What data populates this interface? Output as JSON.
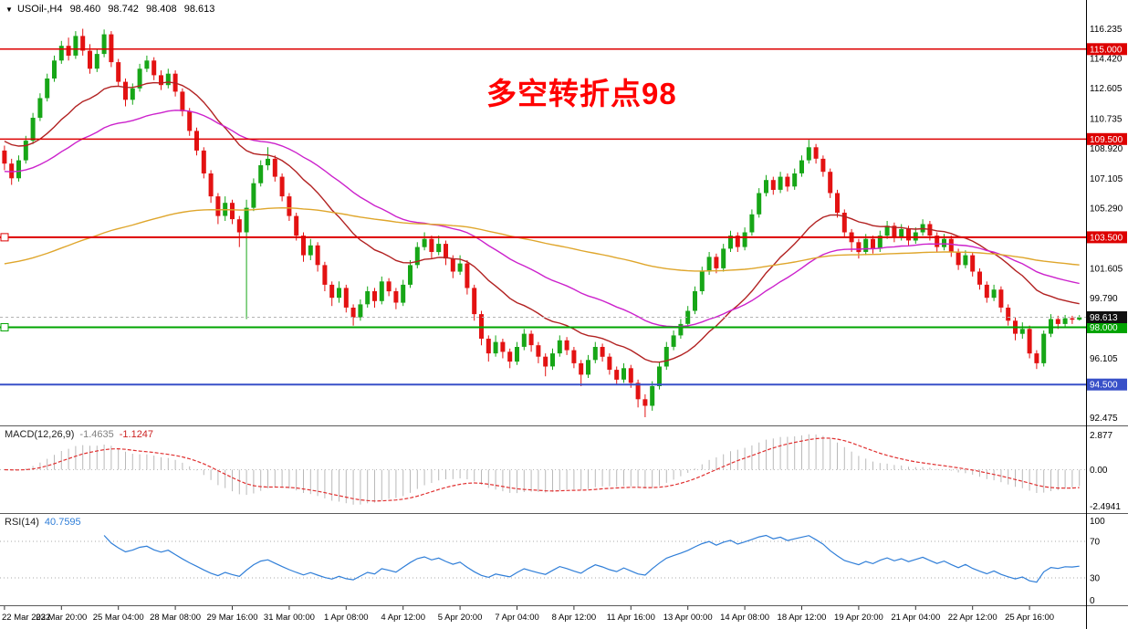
{
  "quote_bar": {
    "symbol": "USOil-,H4",
    "open": "98.460",
    "high": "98.742",
    "low": "98.408",
    "close": "98.613"
  },
  "icons": {
    "symbol_dropdown": "▼"
  },
  "annotation": {
    "text": "多空转折点98",
    "color": "#ff0000"
  },
  "colors": {
    "bull": "#17a617",
    "bear": "#e31212",
    "macd_histogram": "#b9b9b9",
    "macd_signal": "#e03030",
    "rsi_line": "#2f7ed8",
    "current_tag_bg": "#111111"
  },
  "current_price": {
    "value": 98.613,
    "label": "98.613"
  },
  "levels": [
    {
      "value": 115.0,
      "label": "115.000",
      "color": "#dd0000",
      "width": 1.5,
      "anchor": false
    },
    {
      "value": 109.5,
      "label": "109.500",
      "color": "#dd0000",
      "width": 1.5,
      "anchor": false
    },
    {
      "value": 103.5,
      "label": "103.500",
      "color": "#dd0000",
      "width": 2,
      "anchor": true
    },
    {
      "value": 98.0,
      "label": "98.000",
      "color": "#00a400",
      "width": 2,
      "anchor": true
    },
    {
      "value": 94.5,
      "label": "94.500",
      "color": "#3850c8",
      "width": 2,
      "anchor": false
    }
  ],
  "price_axis": {
    "min": 92.0,
    "max": 118.0,
    "tick_labels": [
      "116.235",
      "114.420",
      "112.605",
      "110.735",
      "108.920",
      "107.105",
      "105.290",
      "101.605",
      "99.790",
      "96.105",
      "92.475"
    ]
  },
  "time_axis": [
    "22 Mar 2022",
    "23 Mar 20:00",
    "25 Mar 04:00",
    "28 Mar 08:00",
    "29 Mar 16:00",
    "31 Mar 00:00",
    "1 Apr 08:00",
    "4 Apr 12:00",
    "5 Apr 20:00",
    "7 Apr 04:00",
    "8 Apr 12:00",
    "11 Apr 16:00",
    "13 Apr 00:00",
    "14 Apr 08:00",
    "18 Apr 12:00",
    "19 Apr 20:00",
    "21 Apr 04:00",
    "22 Apr 12:00",
    "25 Apr 16:00"
  ],
  "chart_data": {
    "type": "candlestick",
    "symbol": "USOil-",
    "timeframe": "H4",
    "title_annotation": "多空转折点98",
    "ylim": [
      92.0,
      118.0
    ],
    "moving_averages": [
      {
        "name": "ma-fast-crimson",
        "period": 21,
        "seed": 109.5,
        "color": "#b22222"
      },
      {
        "name": "ma-mid-magenta",
        "period": 45,
        "seed": 107.5,
        "color": "#cc22cc"
      },
      {
        "name": "ma-slow-orange",
        "period": 150,
        "seed": 101.8,
        "color": "#dfa62c"
      }
    ],
    "indicators": {
      "macd": {
        "name": "MACD(12,26,9)",
        "value_main": "-1.4635",
        "value_signal": "-1.1247",
        "fast": 12,
        "slow": 26,
        "signal": 9,
        "axis_labels": [
          "2.877",
          "0.00",
          "-2.4941"
        ]
      },
      "rsi": {
        "name": "RSI(14)",
        "value": "40.7595",
        "period": 14,
        "levels": [
          70,
          30
        ],
        "axis_labels": [
          "100",
          "70",
          "30",
          "0"
        ]
      }
    },
    "candles": [
      [
        108.8,
        109.1,
        107.6,
        108.0
      ],
      [
        108.0,
        108.3,
        106.7,
        107.1
      ],
      [
        107.1,
        108.5,
        106.9,
        108.2
      ],
      [
        108.2,
        109.7,
        108.0,
        109.4
      ],
      [
        109.4,
        111.1,
        109.2,
        110.8
      ],
      [
        110.8,
        112.3,
        110.6,
        112.0
      ],
      [
        112.0,
        113.5,
        111.8,
        113.2
      ],
      [
        113.2,
        114.6,
        113.0,
        114.3
      ],
      [
        114.3,
        115.5,
        114.1,
        115.2
      ],
      [
        115.2,
        115.7,
        114.3,
        114.6
      ],
      [
        114.6,
        116.1,
        114.4,
        115.8
      ],
      [
        115.8,
        116.24,
        114.6,
        114.9
      ],
      [
        114.9,
        115.3,
        113.5,
        113.8
      ],
      [
        113.8,
        115.0,
        113.6,
        114.7
      ],
      [
        114.7,
        116.2,
        114.5,
        115.9
      ],
      [
        115.9,
        116.1,
        113.9,
        114.2
      ],
      [
        114.2,
        114.4,
        112.7,
        113.0
      ],
      [
        113.0,
        113.2,
        111.5,
        111.9
      ],
      [
        111.9,
        112.9,
        111.6,
        112.6
      ],
      [
        112.6,
        114.1,
        112.4,
        113.8
      ],
      [
        113.8,
        114.6,
        113.6,
        114.3
      ],
      [
        114.3,
        114.5,
        113.1,
        113.4
      ],
      [
        113.4,
        113.7,
        112.5,
        112.8
      ],
      [
        112.8,
        113.8,
        112.6,
        113.5
      ],
      [
        113.5,
        113.7,
        112.1,
        112.4
      ],
      [
        112.4,
        112.6,
        110.9,
        111.2
      ],
      [
        111.2,
        111.4,
        109.7,
        110.0
      ],
      [
        110.0,
        110.2,
        108.5,
        108.8
      ],
      [
        108.8,
        109.0,
        107.1,
        107.4
      ],
      [
        107.4,
        107.6,
        105.6,
        106.0
      ],
      [
        106.0,
        106.2,
        104.3,
        104.8
      ],
      [
        104.8,
        106.0,
        104.5,
        105.6
      ],
      [
        105.6,
        105.8,
        104.3,
        104.6
      ],
      [
        104.6,
        104.8,
        102.9,
        103.8
      ],
      [
        103.8,
        105.8,
        98.5,
        105.3
      ],
      [
        105.3,
        107.1,
        105.1,
        106.8
      ],
      [
        106.8,
        108.2,
        106.6,
        107.9
      ],
      [
        107.9,
        109.0,
        107.6,
        108.3
      ],
      [
        108.3,
        108.5,
        106.9,
        107.2
      ],
      [
        107.2,
        107.4,
        105.7,
        106.0
      ],
      [
        106.0,
        106.2,
        104.5,
        104.8
      ],
      [
        104.8,
        105.0,
        103.3,
        103.6
      ],
      [
        103.6,
        103.8,
        102.0,
        102.4
      ],
      [
        102.4,
        103.4,
        102.1,
        103.0
      ],
      [
        103.0,
        103.2,
        101.4,
        101.8
      ],
      [
        101.8,
        102.0,
        100.2,
        100.6
      ],
      [
        100.6,
        100.8,
        99.3,
        99.8
      ],
      [
        99.8,
        100.8,
        99.5,
        100.4
      ],
      [
        100.4,
        100.6,
        98.9,
        99.2
      ],
      [
        99.2,
        99.4,
        98.1,
        98.6
      ],
      [
        98.6,
        99.7,
        98.4,
        99.4
      ],
      [
        99.4,
        100.5,
        99.2,
        100.2
      ],
      [
        100.2,
        100.4,
        99.2,
        99.6
      ],
      [
        99.6,
        101.1,
        99.4,
        100.8
      ],
      [
        100.8,
        101.0,
        99.9,
        100.2
      ],
      [
        100.2,
        100.4,
        99.1,
        99.5
      ],
      [
        99.5,
        100.9,
        99.3,
        100.6
      ],
      [
        100.6,
        102.1,
        100.4,
        101.8
      ],
      [
        101.8,
        103.2,
        101.6,
        102.9
      ],
      [
        102.9,
        103.8,
        102.7,
        103.4
      ],
      [
        103.4,
        103.6,
        102.2,
        102.6
      ],
      [
        102.6,
        103.6,
        102.4,
        103.1
      ],
      [
        103.1,
        103.3,
        101.8,
        102.2
      ],
      [
        102.2,
        102.4,
        101.0,
        101.4
      ],
      [
        101.4,
        102.4,
        101.2,
        101.9
      ],
      [
        101.9,
        102.1,
        100.0,
        100.4
      ],
      [
        100.4,
        100.6,
        98.4,
        98.8
      ],
      [
        98.8,
        99.0,
        96.9,
        97.3
      ],
      [
        97.3,
        97.5,
        95.9,
        96.4
      ],
      [
        96.4,
        97.5,
        96.2,
        97.1
      ],
      [
        97.1,
        97.3,
        96.1,
        96.5
      ],
      [
        96.5,
        96.7,
        95.5,
        95.9
      ],
      [
        95.9,
        97.1,
        95.7,
        96.8
      ],
      [
        96.8,
        97.9,
        96.6,
        97.6
      ],
      [
        97.6,
        97.8,
        96.5,
        96.9
      ],
      [
        96.9,
        97.1,
        95.8,
        96.2
      ],
      [
        96.2,
        96.4,
        95.0,
        95.6
      ],
      [
        95.6,
        96.7,
        95.4,
        96.4
      ],
      [
        96.4,
        97.5,
        96.2,
        97.2
      ],
      [
        97.2,
        97.4,
        96.3,
        96.6
      ],
      [
        96.6,
        96.8,
        95.5,
        95.8
      ],
      [
        95.8,
        96.0,
        94.4,
        95.1
      ],
      [
        95.1,
        96.3,
        94.9,
        96.0
      ],
      [
        96.0,
        97.1,
        95.8,
        96.8
      ],
      [
        96.8,
        97.0,
        95.9,
        96.2
      ],
      [
        96.2,
        96.4,
        95.1,
        95.4
      ],
      [
        95.4,
        95.6,
        94.5,
        94.8
      ],
      [
        94.8,
        95.8,
        94.6,
        95.5
      ],
      [
        95.5,
        95.7,
        94.3,
        94.6
      ],
      [
        94.6,
        94.8,
        93.1,
        93.6
      ],
      [
        93.6,
        93.9,
        92.5,
        93.2
      ],
      [
        93.2,
        94.7,
        92.9,
        94.4
      ],
      [
        94.4,
        95.9,
        94.2,
        95.6
      ],
      [
        95.6,
        97.1,
        95.4,
        96.8
      ],
      [
        96.8,
        97.8,
        96.6,
        97.5
      ],
      [
        97.5,
        98.5,
        97.3,
        98.2
      ],
      [
        98.2,
        99.3,
        98.0,
        99.0
      ],
      [
        99.0,
        100.5,
        98.8,
        100.2
      ],
      [
        100.2,
        101.7,
        100.0,
        101.4
      ],
      [
        101.4,
        102.6,
        101.2,
        102.3
      ],
      [
        102.3,
        102.5,
        101.3,
        101.6
      ],
      [
        101.6,
        103.1,
        101.4,
        102.8
      ],
      [
        102.8,
        103.9,
        102.6,
        103.6
      ],
      [
        103.6,
        103.8,
        102.6,
        102.9
      ],
      [
        102.9,
        104.1,
        102.7,
        103.8
      ],
      [
        103.8,
        105.2,
        103.6,
        104.9
      ],
      [
        104.9,
        106.5,
        104.7,
        106.2
      ],
      [
        106.2,
        107.3,
        106.0,
        107.0
      ],
      [
        107.0,
        107.2,
        106.1,
        106.4
      ],
      [
        106.4,
        107.5,
        106.2,
        107.2
      ],
      [
        107.2,
        107.4,
        106.3,
        106.6
      ],
      [
        106.6,
        107.7,
        106.4,
        107.4
      ],
      [
        107.4,
        108.5,
        107.2,
        108.2
      ],
      [
        108.2,
        109.45,
        108.0,
        109.0
      ],
      [
        109.0,
        109.2,
        108.0,
        108.3
      ],
      [
        108.3,
        108.5,
        107.2,
        107.5
      ],
      [
        107.5,
        107.7,
        105.9,
        106.2
      ],
      [
        106.2,
        106.4,
        104.7,
        105.0
      ],
      [
        105.0,
        105.2,
        103.5,
        103.8
      ],
      [
        103.8,
        104.0,
        102.6,
        103.2
      ],
      [
        103.2,
        103.4,
        102.2,
        102.6
      ],
      [
        102.6,
        103.7,
        102.4,
        103.4
      ],
      [
        103.4,
        103.6,
        102.5,
        102.8
      ],
      [
        102.8,
        103.9,
        102.6,
        103.6
      ],
      [
        103.6,
        104.5,
        103.4,
        104.2
      ],
      [
        104.2,
        104.4,
        103.2,
        103.5
      ],
      [
        103.5,
        104.3,
        103.3,
        104.0
      ],
      [
        104.0,
        104.2,
        103.0,
        103.3
      ],
      [
        103.3,
        104.1,
        103.1,
        103.8
      ],
      [
        103.8,
        104.6,
        103.6,
        104.3
      ],
      [
        104.3,
        104.5,
        103.3,
        103.6
      ],
      [
        103.6,
        103.8,
        102.6,
        102.9
      ],
      [
        102.9,
        103.7,
        102.7,
        103.4
      ],
      [
        103.4,
        103.6,
        102.3,
        102.6
      ],
      [
        102.6,
        102.8,
        101.5,
        101.8
      ],
      [
        101.8,
        102.7,
        101.6,
        102.4
      ],
      [
        102.4,
        102.6,
        101.1,
        101.4
      ],
      [
        101.4,
        101.6,
        100.3,
        100.6
      ],
      [
        100.6,
        100.8,
        99.5,
        99.8
      ],
      [
        99.8,
        100.6,
        99.6,
        100.3
      ],
      [
        100.3,
        100.5,
        98.9,
        99.2
      ],
      [
        99.2,
        99.4,
        98.1,
        98.4
      ],
      [
        98.4,
        98.6,
        97.2,
        97.6
      ],
      [
        97.6,
        98.3,
        97.3,
        97.9
      ],
      [
        97.9,
        98.1,
        96.1,
        96.4
      ],
      [
        96.4,
        96.6,
        95.45,
        95.8
      ],
      [
        95.8,
        97.8,
        95.6,
        97.6
      ],
      [
        97.6,
        98.8,
        97.4,
        98.5
      ],
      [
        98.5,
        98.7,
        97.9,
        98.2
      ],
      [
        98.2,
        98.75,
        98.0,
        98.55
      ],
      [
        98.55,
        98.7,
        98.2,
        98.46
      ],
      [
        98.46,
        98.742,
        98.408,
        98.613
      ]
    ]
  }
}
